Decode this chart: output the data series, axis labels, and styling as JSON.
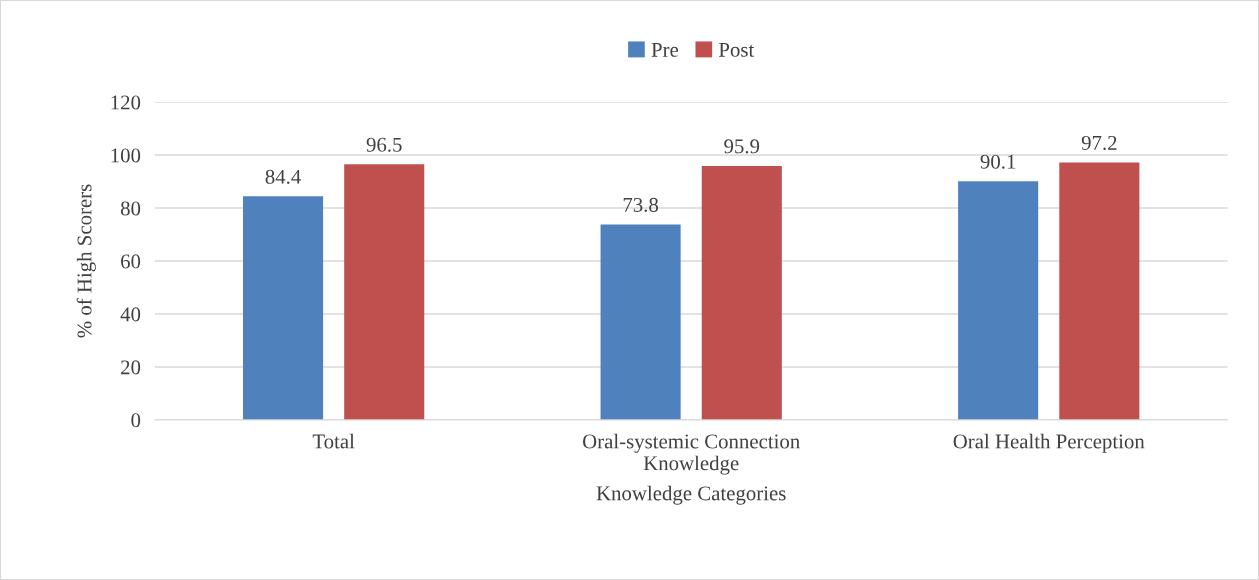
{
  "chart_data": {
    "type": "bar",
    "xlabel": "Knowledge Categories",
    "ylabel": "% of High Scorers",
    "categories": [
      "Total",
      "Oral-systemic Connection\nKnowledge",
      "Oral Health Perception"
    ],
    "series": [
      {
        "name": "Pre",
        "color": "#4f81bd",
        "values": [
          84.4,
          73.8,
          90.1
        ]
      },
      {
        "name": "Post",
        "color": "#c0504d",
        "values": [
          96.5,
          95.9,
          97.2
        ]
      }
    ],
    "ylim": [
      0,
      120
    ],
    "yticks": [
      0,
      20,
      40,
      60,
      80,
      100,
      120
    ],
    "grid": "y",
    "legend": "top",
    "data_labels": true
  }
}
